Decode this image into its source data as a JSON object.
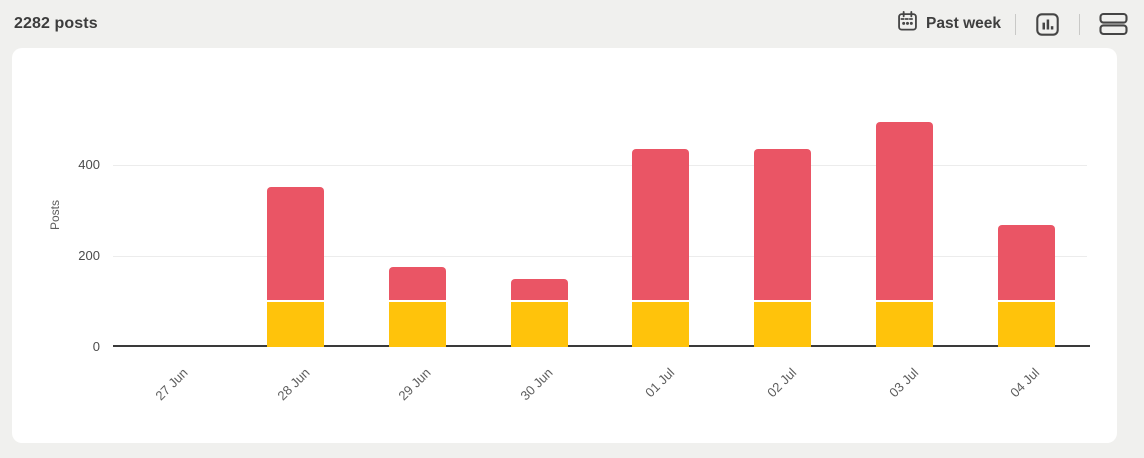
{
  "header": {
    "title": "2282 posts",
    "date_range": {
      "label": "Past week",
      "icon": "calendar-icon"
    },
    "view_toggles": [
      {
        "icon": "bar-chart-icon"
      },
      {
        "icon": "rows-icon"
      }
    ]
  },
  "colors": {
    "page_background": "#f0f0ee",
    "card_background": "#ffffff",
    "bar_yellow": "#ffc30b",
    "bar_pink": "#ea5565",
    "gridline": "#ececec",
    "axis": "#3a3a3a",
    "text_dark": "#3c3c3c",
    "text_muted": "#5d5d5d"
  },
  "chart_data": {
    "type": "bar",
    "stacked": true,
    "title": "2282 posts",
    "categories": [
      "27 Jun",
      "28 Jun",
      "29 Jun",
      "30 Jun",
      "01 Jul",
      "02 Jul",
      "03 Jul",
      "04 Jul"
    ],
    "series": [
      {
        "name": "yellow",
        "color": "#ffc30b",
        "values": [
          0,
          100,
          100,
          100,
          100,
          100,
          100,
          100
        ]
      },
      {
        "name": "pink",
        "color": "#ea5565",
        "values": [
          0,
          248,
          71,
          46,
          331,
          331,
          391,
          164
        ]
      }
    ],
    "totals": [
      0,
      348,
      171,
      146,
      431,
      431,
      491,
      264
    ],
    "xlabel": "",
    "ylabel": "Posts",
    "yticks": [
      0,
      200,
      400
    ],
    "ylim": [
      0,
      520
    ],
    "grid": "horizontal",
    "legend_position": "none"
  }
}
